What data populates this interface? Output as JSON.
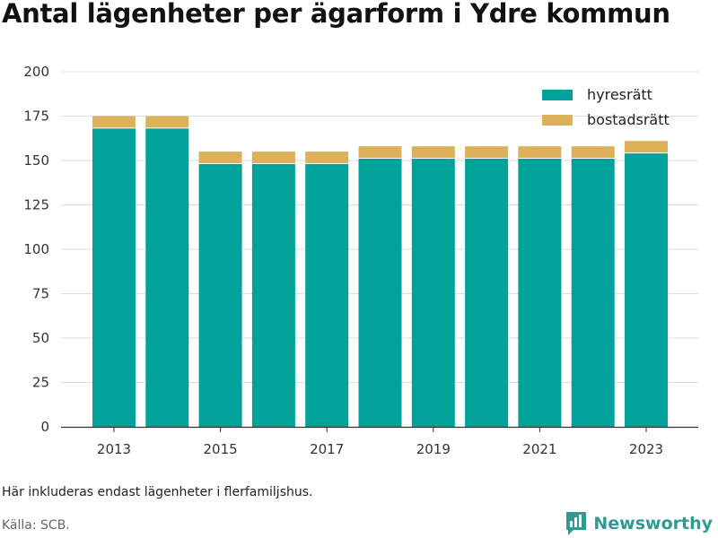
{
  "header": {
    "title": "Antal lägenheter per ägarform i Ydre kommun"
  },
  "footer": {
    "note": "Här inkluderas endast lägenheter i flerfamiljshus.",
    "source": "Källa: SCB.",
    "brand": "Newsworthy"
  },
  "colors": {
    "hyresratt": "#00a29a",
    "bostadsratt": "#dcb15a",
    "grid": "#dddddd",
    "brand": "#2f9a92"
  },
  "chart_data": {
    "type": "bar",
    "stacked": true,
    "title": "Antal lägenheter per ägarform i Ydre kommun",
    "categories": [
      2013,
      2014,
      2015,
      2016,
      2017,
      2018,
      2019,
      2020,
      2021,
      2022,
      2023
    ],
    "x_tick_labels": [
      "2013",
      "2015",
      "2017",
      "2019",
      "2021",
      "2023"
    ],
    "series": [
      {
        "name": "hyresrätt",
        "color": "#00a29a",
        "values": [
          168,
          168,
          148,
          148,
          148,
          151,
          151,
          151,
          151,
          151,
          154
        ]
      },
      {
        "name": "bostadsrätt",
        "color": "#dcb15a",
        "values": [
          7,
          7,
          7,
          7,
          7,
          7,
          7,
          7,
          7,
          7,
          7
        ]
      }
    ],
    "ylim": [
      0,
      200
    ],
    "y_ticks": [
      0,
      25,
      50,
      75,
      100,
      125,
      150,
      175,
      200
    ],
    "grid": true,
    "legend_position": "top-right",
    "xlabel": "",
    "ylabel": ""
  }
}
